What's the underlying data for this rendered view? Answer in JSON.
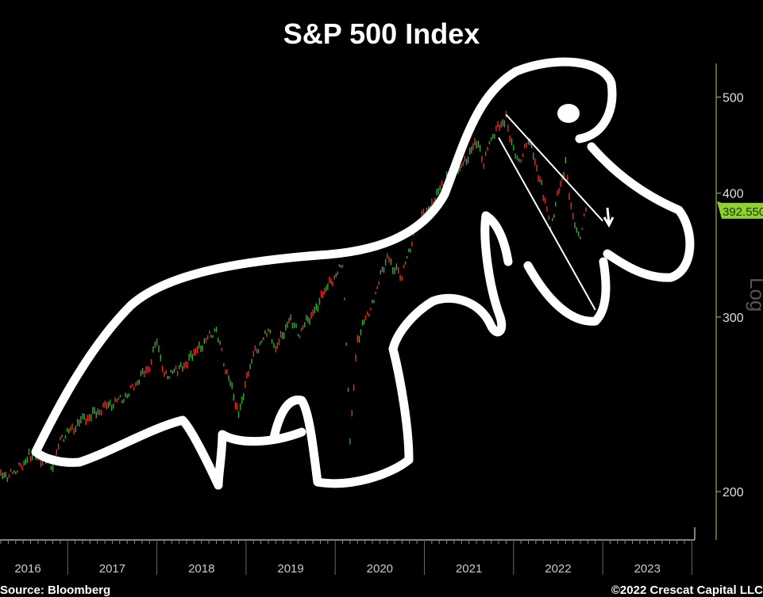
{
  "chart_data": {
    "type": "line",
    "title": "S&P 500 Index",
    "y_scale": "log",
    "y_scale_label": "Log",
    "ylim": [
      180,
      540
    ],
    "y_ticks": [
      200,
      300,
      400,
      500
    ],
    "x_tick_labels": [
      "2016",
      "2017",
      "2018",
      "2019",
      "2020",
      "2021",
      "2022",
      "2023"
    ],
    "grid": false,
    "last_value_label": "392.550",
    "colors": {
      "up": "#3aa33a",
      "down": "#e03020",
      "axis": "#7d8a3a",
      "last_value": "#8fd12f",
      "annotation": "#ffffff"
    },
    "series": [
      {
        "x": [
          "2016-01",
          "2016-02",
          "2016-04",
          "2016-06",
          "2016-08",
          "2016-11",
          "2016-12",
          "2017-03",
          "2017-06",
          "2017-09",
          "2017-12",
          "2018-01",
          "2018-02",
          "2018-04",
          "2018-06",
          "2018-09",
          "2018-10",
          "2018-12",
          "2019-02",
          "2019-04",
          "2019-05",
          "2019-07",
          "2019-08",
          "2019-10",
          "2019-12",
          "2020-02",
          "2020-03",
          "2020-04",
          "2020-06",
          "2020-08",
          "2020-09",
          "2020-10",
          "2020-12",
          "2021-02",
          "2021-04",
          "2021-06",
          "2021-08",
          "2021-09",
          "2021-10",
          "2021-12",
          "2022-01",
          "2022-02",
          "2022-03",
          "2022-05",
          "2022-06",
          "2022-08",
          "2022-09",
          "2022-10",
          "2022-11"
        ],
        "values": [
          201,
          190,
          207,
          209,
          218,
          213,
          226,
          236,
          243,
          250,
          268,
          285,
          262,
          265,
          275,
          292,
          270,
          240,
          275,
          290,
          278,
          300,
          288,
          303,
          322,
          338,
          225,
          285,
          310,
          345,
          335,
          330,
          372,
          390,
          415,
          425,
          450,
          430,
          455,
          477,
          440,
          430,
          455,
          400,
          370,
          428,
          375,
          360,
          393
        ]
      }
    ],
    "trendlines": [
      {
        "from": [
          "2021-12",
          480
        ],
        "to": [
          "2023-01",
          375
        ]
      },
      {
        "from": [
          "2021-11",
          455
        ],
        "to": [
          "2022-12",
          305
        ]
      }
    ],
    "annotation": "hand-drawn dinosaur outline",
    "footer": {
      "source": "Source: Bloomberg",
      "copyright": "©2022 Crescat Capital LLC"
    }
  }
}
